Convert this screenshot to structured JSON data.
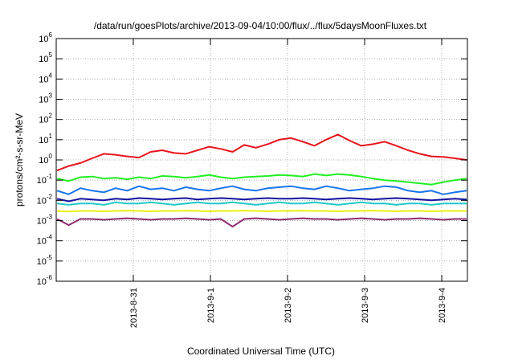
{
  "chart_data": {
    "type": "line",
    "title": "/data/run/goesPlots/archive/2013-09-04/10:00/flux/../flux/5daysMoonFluxes.txt",
    "xlabel": "Coordinated Universal Time (UTC)",
    "ylabel": "protons/cm²-s-sr-MeV",
    "y_scale": "log",
    "ylim_exponents": [
      -6,
      6
    ],
    "y_ticks": [
      "10^-6",
      "10^-5",
      "10^-4",
      "10^-3",
      "10^-2",
      "10^-1",
      "10^0",
      "10^1",
      "10^2",
      "10^3",
      "10^4",
      "10^5",
      "10^6"
    ],
    "x_range": [
      "2013-08-30T00:00",
      "2013-09-04T08:00"
    ],
    "x_ticks": [
      "2013-8-31",
      "2013-9-1",
      "2013-9-2",
      "2013-9-3",
      "2013-9-4"
    ],
    "grid": true,
    "legend": "none",
    "series": [
      {
        "color": "#e8141c",
        "values": [
          0.3,
          0.5,
          0.7,
          1.2,
          2.0,
          1.8,
          1.5,
          1.3,
          2.5,
          3.0,
          2.2,
          2.0,
          3.0,
          4.5,
          3.5,
          2.5,
          5.5,
          4.0,
          6.0,
          10,
          12,
          8,
          5,
          10,
          18,
          9,
          5,
          6,
          8,
          5,
          3,
          2,
          1.5,
          1.4,
          1.2,
          1.0
        ]
      },
      {
        "color": "#22ee22",
        "values": [
          0.12,
          0.09,
          0.14,
          0.15,
          0.12,
          0.13,
          0.11,
          0.14,
          0.12,
          0.16,
          0.15,
          0.13,
          0.15,
          0.18,
          0.14,
          0.12,
          0.14,
          0.15,
          0.16,
          0.18,
          0.17,
          0.15,
          0.2,
          0.17,
          0.2,
          0.18,
          0.15,
          0.12,
          0.1,
          0.09,
          0.08,
          0.07,
          0.06,
          0.08,
          0.1,
          0.12
        ]
      },
      {
        "color": "#1874ee",
        "values": [
          0.03,
          0.02,
          0.04,
          0.03,
          0.025,
          0.04,
          0.03,
          0.05,
          0.035,
          0.04,
          0.03,
          0.045,
          0.035,
          0.03,
          0.04,
          0.05,
          0.035,
          0.03,
          0.04,
          0.045,
          0.05,
          0.04,
          0.035,
          0.05,
          0.04,
          0.03,
          0.035,
          0.04,
          0.05,
          0.045,
          0.03,
          0.025,
          0.03,
          0.02,
          0.025,
          0.03
        ]
      },
      {
        "color": "#1414a0",
        "values": [
          0.012,
          0.009,
          0.012,
          0.011,
          0.01,
          0.012,
          0.011,
          0.013,
          0.012,
          0.011,
          0.012,
          0.013,
          0.011,
          0.012,
          0.013,
          0.012,
          0.011,
          0.012,
          0.013,
          0.012,
          0.012,
          0.013,
          0.012,
          0.011,
          0.012,
          0.013,
          0.012,
          0.011,
          0.012,
          0.013,
          0.012,
          0.011,
          0.01,
          0.011,
          0.012,
          0.011
        ]
      },
      {
        "color": "#20c8c8",
        "values": [
          0.007,
          0.006,
          0.007,
          0.007,
          0.006,
          0.008,
          0.007,
          0.007,
          0.008,
          0.007,
          0.006,
          0.007,
          0.008,
          0.007,
          0.007,
          0.008,
          0.007,
          0.006,
          0.007,
          0.008,
          0.007,
          0.007,
          0.008,
          0.007,
          0.006,
          0.007,
          0.008,
          0.007,
          0.007,
          0.006,
          0.007,
          0.007,
          0.006,
          0.007,
          0.007,
          0.007
        ]
      },
      {
        "color": "#eeee10",
        "values": [
          0.003,
          0.0028,
          0.003,
          0.003,
          0.0029,
          0.003,
          0.0031,
          0.003,
          0.0029,
          0.003,
          0.003,
          0.0031,
          0.003,
          0.0029,
          0.003,
          0.003,
          0.0031,
          0.003,
          0.0029,
          0.003,
          0.003,
          0.0031,
          0.003,
          0.003,
          0.0029,
          0.003,
          0.003,
          0.0031,
          0.003,
          0.0029,
          0.003,
          0.003,
          0.0029,
          0.003,
          0.003,
          0.003
        ]
      },
      {
        "color": "#8e2a6e",
        "values": [
          0.0012,
          0.0006,
          0.0012,
          0.0012,
          0.0011,
          0.0012,
          0.0013,
          0.0012,
          0.0011,
          0.0012,
          0.0012,
          0.0013,
          0.0012,
          0.0011,
          0.0012,
          0.0005,
          0.0012,
          0.0013,
          0.0012,
          0.0011,
          0.0012,
          0.0013,
          0.0012,
          0.0012,
          0.0011,
          0.0012,
          0.0013,
          0.0012,
          0.0011,
          0.0012,
          0.0012,
          0.0013,
          0.0012,
          0.0011,
          0.0012,
          0.0012
        ]
      }
    ]
  }
}
